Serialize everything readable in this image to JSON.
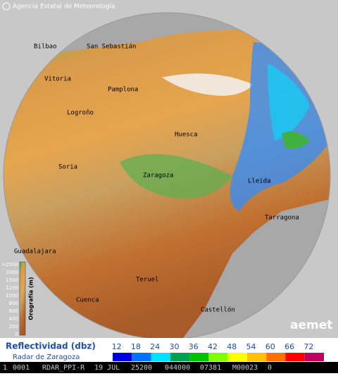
{
  "header": {
    "agency": "Agencia Estatal de Meteorología"
  },
  "cities": [
    "Bilbao",
    "San Sebastián",
    "Vitoria",
    "Pamplona",
    "Logroño",
    "Huesca",
    "Soria",
    "Zaragoza",
    "Lleida",
    "Tarragona",
    "Guadalajara",
    "Teruel",
    "Cuenca",
    "Castellón"
  ],
  "orography": {
    "title": "Orografía (m)",
    "levels": [
      ">2500",
      "2000",
      "1500",
      "1200",
      "1000",
      "800",
      "600",
      "400",
      "200",
      "0"
    ]
  },
  "logo": "aemet",
  "legend": {
    "title": "Reflectividad (dbz)",
    "subtitle": "Radar de Zaragoza",
    "values": [
      12,
      18,
      24,
      30,
      36,
      42,
      48,
      54,
      60,
      66,
      72
    ],
    "colors": [
      "#0000e0",
      "#0070ff",
      "#00e0ff",
      "#00a050",
      "#00c000",
      "#80ff00",
      "#ffff00",
      "#ffc000",
      "#ff7000",
      "#ff0000",
      "#c00060"
    ]
  },
  "status": {
    "fields": [
      "1",
      "0001",
      "RDAR_PPI-R",
      "19 JUL",
      "25200",
      "044000",
      "07381",
      "M00023",
      "0"
    ]
  }
}
